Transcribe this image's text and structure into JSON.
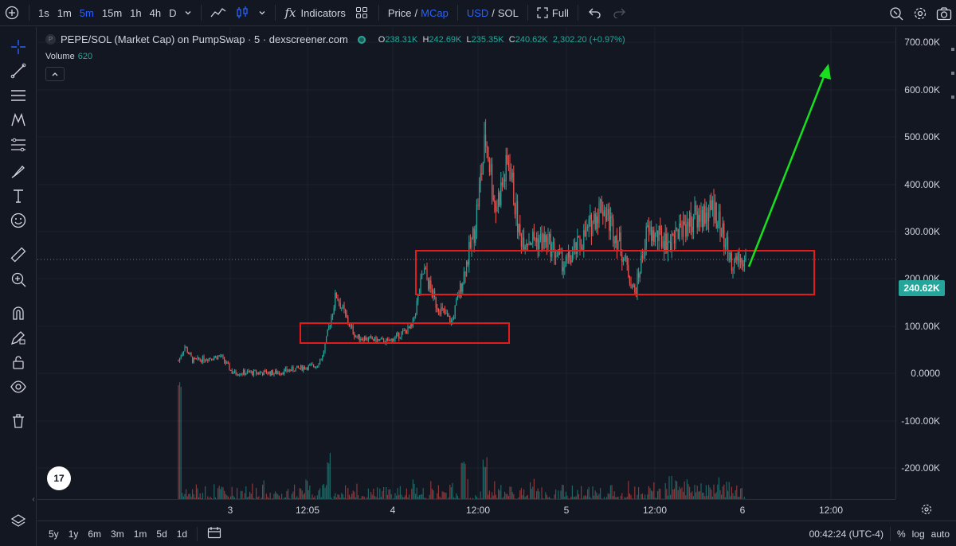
{
  "toolbar": {
    "intervals": [
      "1s",
      "1m",
      "5m",
      "15m",
      "1h",
      "4h",
      "D"
    ],
    "active_interval": "5m",
    "indicators_label": "Indicators",
    "price_label": "Price",
    "mcap_label": "MCap",
    "usd_label": "USD",
    "sol_label": "SOL",
    "full_label": "Full",
    "slash": "/"
  },
  "legend": {
    "title": "PEPE/SOL (Market Cap) on PumpSwap · 5 · dexscreener.com",
    "o_label": "O",
    "o_value": "238.31K",
    "h_label": "H",
    "h_value": "242.69K",
    "l_label": "L",
    "l_value": "235.35K",
    "c_label": "C",
    "c_value": "240.62K",
    "change": "2,302.20 (+0.97%)",
    "volume_label": "Volume",
    "volume_value": "620"
  },
  "price_axis": {
    "labels": [
      "700.00K",
      "600.00K",
      "500.00K",
      "400.00K",
      "300.00K",
      "200.00K",
      "100.00K",
      "0.0000",
      "-100.00K",
      "-200.00K"
    ],
    "current_price": "240.62K"
  },
  "time_axis": {
    "labels": [
      "3",
      "12:05",
      "4",
      "12:00",
      "5",
      "12:00",
      "6",
      "12:00"
    ]
  },
  "bottom": {
    "ranges": [
      "5y",
      "1y",
      "6m",
      "3m",
      "1m",
      "5d",
      "1d"
    ],
    "clock": "00:42:24 (UTC-4)",
    "percent": "%",
    "log": "log",
    "auto": "auto"
  },
  "tv_logo": "17",
  "colors": {
    "up": "#26a69a",
    "down": "#ef5350",
    "accent": "#2962ff",
    "annotation_box": "#e31b1b",
    "annotation_arrow": "#19e01e"
  },
  "chart_data": {
    "type": "candlestick",
    "title": "PEPE/SOL (Market Cap) on PumpSwap · 5 · dexscreener.com",
    "ylim": [
      -260000,
      730000
    ],
    "series": [
      {
        "name": "PEPE/SOL",
        "path": [
          [
            "3",
            30000
          ],
          [
            "3",
            60000
          ],
          [
            "3",
            30000
          ],
          [
            "3",
            40000
          ],
          [
            "3",
            5000
          ],
          [
            "3",
            3000
          ],
          [
            "12:05",
            15000
          ],
          [
            "12:05",
            20000
          ],
          [
            "12:05",
            40000
          ],
          [
            "12:05",
            170000
          ],
          [
            "12:05",
            120000
          ],
          [
            "4",
            80000
          ],
          [
            "4",
            70000
          ],
          [
            "4",
            100000
          ],
          [
            "4",
            220000
          ],
          [
            "4",
            150000
          ],
          [
            "4",
            110000
          ],
          [
            "4",
            210000
          ],
          [
            "4",
            300000
          ],
          [
            "12:00",
            500000
          ],
          [
            "12:00",
            350000
          ],
          [
            "12:00",
            450000
          ],
          [
            "12:00",
            290000
          ],
          [
            "12:00",
            320000
          ],
          [
            "5",
            260000
          ],
          [
            "5",
            220000
          ],
          [
            "5",
            280000
          ],
          [
            "5",
            350000
          ],
          [
            "5",
            280000
          ],
          [
            "12:00",
            180000
          ],
          [
            "12:00",
            300000
          ],
          [
            "12:00",
            280000
          ],
          [
            "12:00",
            320000
          ],
          [
            "6",
            350000
          ],
          [
            "6",
            250000
          ],
          [
            "6",
            240620
          ]
        ]
      },
      {
        "name": "Volume",
        "note": "volume histogram along bottom"
      }
    ],
    "annotations": [
      {
        "type": "rectangle",
        "price_range": [
          60000,
          105000
        ],
        "time_range": [
          "12:05",
          "4"
        ]
      },
      {
        "type": "rectangle",
        "price_range": [
          165000,
          260000
        ],
        "time_range": [
          "4",
          "12:00"
        ]
      },
      {
        "type": "arrow",
        "direction": "up",
        "from_price": 240000,
        "to_price": 650000
      }
    ]
  }
}
